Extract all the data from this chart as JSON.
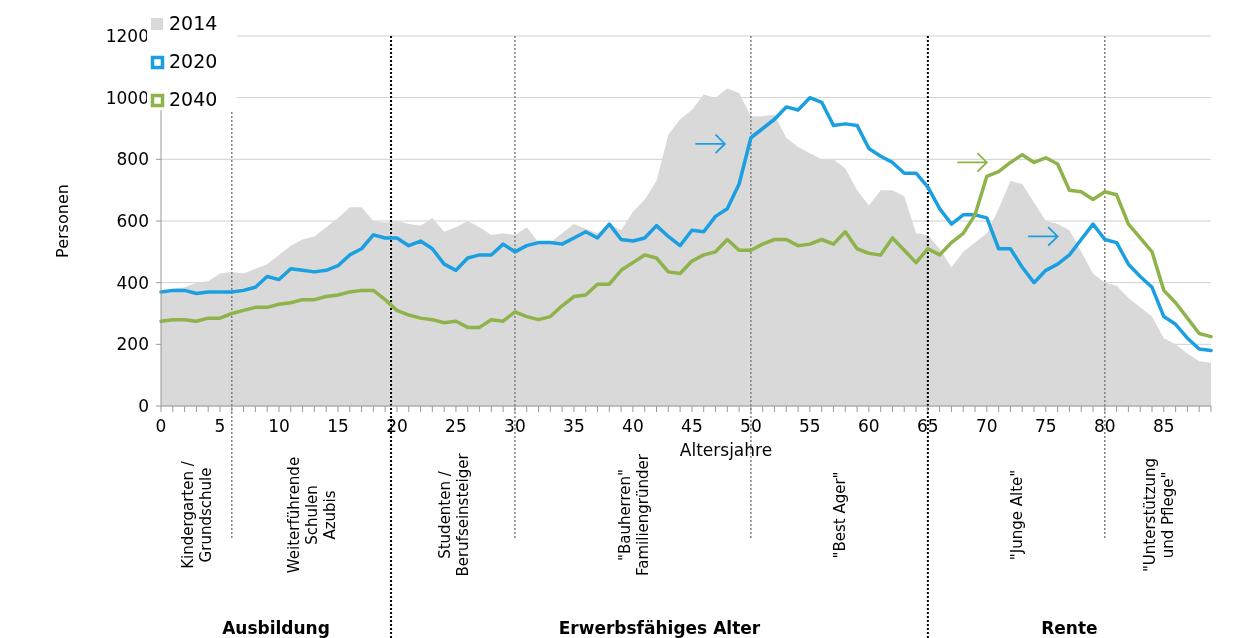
{
  "chart_data": {
    "type": "line",
    "xlabel": "Altersjahre",
    "ylabel": "Personen",
    "x": [
      0,
      1,
      2,
      3,
      4,
      5,
      6,
      7,
      8,
      9,
      10,
      11,
      12,
      13,
      14,
      15,
      16,
      17,
      18,
      19,
      20,
      21,
      22,
      23,
      24,
      25,
      26,
      27,
      28,
      29,
      30,
      31,
      32,
      33,
      34,
      35,
      36,
      37,
      38,
      39,
      40,
      41,
      42,
      43,
      44,
      45,
      46,
      47,
      48,
      49,
      50,
      51,
      52,
      53,
      54,
      55,
      56,
      57,
      58,
      59,
      60,
      61,
      62,
      63,
      64,
      65,
      66,
      67,
      68,
      69,
      70,
      71,
      72,
      73,
      74,
      75,
      76,
      77,
      78,
      79,
      80,
      81,
      82,
      83,
      84,
      85,
      86,
      87,
      88,
      89
    ],
    "series": [
      {
        "name": "2014",
        "type": "area",
        "color": "#d9d9d9",
        "values": [
          370,
          380,
          385,
          400,
          405,
          430,
          435,
          430,
          445,
          460,
          490,
          520,
          540,
          550,
          580,
          610,
          645,
          645,
          600,
          595,
          600,
          590,
          585,
          610,
          565,
          580,
          600,
          580,
          555,
          560,
          555,
          580,
          530,
          530,
          560,
          590,
          575,
          560,
          590,
          570,
          630,
          670,
          730,
          880,
          930,
          960,
          1010,
          1000,
          1030,
          1015,
          940,
          940,
          945,
          870,
          840,
          820,
          800,
          800,
          770,
          700,
          650,
          700,
          700,
          680,
          560,
          555,
          510,
          450,
          500,
          530,
          560,
          640,
          730,
          720,
          660,
          600,
          590,
          570,
          500,
          430,
          400,
          390,
          350,
          320,
          290,
          220,
          200,
          170,
          145,
          140
        ]
      },
      {
        "name": "2020",
        "color": "#1a9fe0",
        "values": [
          370,
          375,
          375,
          365,
          370,
          370,
          370,
          375,
          385,
          420,
          410,
          445,
          440,
          435,
          440,
          455,
          490,
          510,
          555,
          545,
          545,
          520,
          535,
          510,
          460,
          440,
          480,
          490,
          490,
          525,
          500,
          520,
          530,
          530,
          525,
          545,
          565,
          545,
          590,
          540,
          535,
          545,
          585,
          550,
          520,
          570,
          565,
          615,
          640,
          720,
          870,
          900,
          930,
          970,
          960,
          1000,
          985,
          910,
          915,
          910,
          835,
          810,
          790,
          755,
          755,
          710,
          640,
          590,
          620,
          620,
          610,
          510,
          510,
          450,
          400,
          440,
          460,
          490,
          540,
          590,
          540,
          530,
          460,
          420,
          385,
          290,
          265,
          220,
          185,
          180
        ]
      },
      {
        "name": "2040",
        "color": "#8db34a",
        "values": [
          275,
          280,
          280,
          275,
          285,
          285,
          300,
          310,
          320,
          320,
          330,
          335,
          345,
          345,
          355,
          360,
          370,
          375,
          375,
          345,
          310,
          295,
          285,
          280,
          270,
          275,
          255,
          255,
          280,
          275,
          305,
          290,
          280,
          290,
          325,
          355,
          360,
          395,
          395,
          440,
          465,
          490,
          480,
          435,
          430,
          470,
          490,
          500,
          540,
          505,
          505,
          525,
          540,
          540,
          520,
          525,
          540,
          525,
          565,
          510,
          495,
          490,
          545,
          505,
          465,
          510,
          490,
          530,
          560,
          620,
          745,
          760,
          790,
          815,
          790,
          805,
          785,
          700,
          695,
          670,
          695,
          685,
          590,
          545,
          500,
          375,
          335,
          285,
          235,
          225
        ]
      }
    ],
    "xlim": [
      0,
      89
    ],
    "xticks": [
      0,
      {
        "value": 1,
        "label": null
      },
      {
        "value": 2,
        "label": null
      },
      {
        "value": 3,
        "label": null
      },
      {
        "value": 4,
        "label": null
      },
      5,
      {
        "value": 6,
        "label": null
      },
      {
        "value": 7,
        "label": null
      },
      {
        "value": 8,
        "label": null
      },
      {
        "value": 9,
        "label": null
      },
      10,
      {
        "value": 11,
        "label": null
      },
      {
        "value": 12,
        "label": null
      },
      {
        "value": 13,
        "label": null
      },
      {
        "value": 14,
        "label": null
      },
      15,
      {
        "value": 16,
        "label": null
      },
      {
        "value": 17,
        "label": null
      },
      {
        "value": 18,
        "label": null
      },
      {
        "value": 19,
        "label": null
      },
      20,
      {
        "value": 21,
        "label": null
      },
      {
        "value": 22,
        "label": null
      },
      {
        "value": 23,
        "label": null
      },
      {
        "value": 24,
        "label": null
      },
      25,
      {
        "value": 26,
        "label": null
      },
      {
        "value": 27,
        "label": null
      },
      {
        "value": 28,
        "label": null
      },
      {
        "value": 29,
        "label": null
      },
      30,
      {
        "value": 31,
        "label": null
      },
      {
        "value": 32,
        "label": null
      },
      {
        "value": 33,
        "label": null
      },
      {
        "value": 34,
        "label": null
      },
      35,
      {
        "value": 36,
        "label": null
      },
      {
        "value": 37,
        "label": null
      },
      {
        "value": 38,
        "label": null
      },
      {
        "value": 39,
        "label": null
      },
      40,
      {
        "value": 41,
        "label": null
      },
      {
        "value": 42,
        "label": null
      },
      {
        "value": 43,
        "label": null
      },
      {
        "value": 44,
        "label": null
      },
      45,
      {
        "value": 46,
        "label": null
      },
      {
        "value": 47,
        "label": null
      },
      {
        "value": 48,
        "label": null
      },
      {
        "value": 49,
        "label": null
      },
      50,
      {
        "value": 51,
        "label": null
      },
      {
        "value": 52,
        "label": null
      },
      {
        "value": 53,
        "label": null
      },
      {
        "value": 54,
        "label": null
      },
      55,
      {
        "value": 56,
        "label": null
      },
      {
        "value": 57,
        "label": null
      },
      {
        "value": 58,
        "label": null
      },
      {
        "value": 59,
        "label": null
      },
      60,
      {
        "value": 61,
        "label": null
      },
      {
        "value": 62,
        "label": null
      },
      {
        "value": 63,
        "label": null
      },
      {
        "value": 64,
        "label": null
      },
      65,
      {
        "value": 66,
        "label": null
      },
      {
        "value": 67,
        "label": null
      },
      {
        "value": 68,
        "label": null
      },
      {
        "value": 69,
        "label": null
      },
      70,
      {
        "value": 71,
        "label": null
      },
      {
        "value": 72,
        "label": null
      },
      {
        "value": 73,
        "label": null
      },
      {
        "value": 74,
        "label": null
      },
      75,
      {
        "value": 76,
        "label": null
      },
      {
        "value": 77,
        "label": null
      },
      {
        "value": 78,
        "label": null
      },
      {
        "value": 79,
        "label": null
      },
      80,
      {
        "value": 81,
        "label": null
      },
      {
        "value": 82,
        "label": null
      },
      {
        "value": 83,
        "label": null
      },
      {
        "value": 84,
        "label": null
      },
      85,
      {
        "value": 86,
        "label": null
      },
      {
        "value": 87,
        "label": null
      },
      {
        "value": 88,
        "label": null
      },
      {
        "value": 89,
        "label": null
      }
    ],
    "ylim": [
      0,
      1200
    ],
    "yticks": [
      0,
      200,
      400,
      600,
      800,
      1000,
      1200
    ],
    "grid": "y",
    "legend": "top left",
    "ref_lines": [
      {
        "axis": "x",
        "value": 6,
        "color": "#808080",
        "line_style": "dotted"
      },
      {
        "axis": "x",
        "value": 19.5,
        "color": "#000000",
        "line_style": "dotted"
      },
      {
        "axis": "x",
        "value": 30,
        "color": "#808080",
        "line_style": "dotted"
      },
      {
        "axis": "x",
        "value": 50,
        "color": "#808080",
        "line_style": "dotted"
      },
      {
        "axis": "x",
        "value": 65,
        "color": "#000000",
        "line_style": "dotted"
      },
      {
        "axis": "x",
        "value": 80,
        "color": "#808080",
        "line_style": "dotted"
      }
    ],
    "annotations": [
      "Kindergarten /\nGrundschule",
      "Weiterführende\nSchulen\nAzubis",
      "Studenten /\nBerufseinsteiger",
      "\"Bauherren\"\nFamiliengründer",
      "\"Best Ager\"",
      "\"Junge Alte\"",
      "\"Unterstützung\nund Pflege\"",
      "Ausbildung",
      "Erwerbsfähiges Alter",
      "Rente"
    ]
  }
}
